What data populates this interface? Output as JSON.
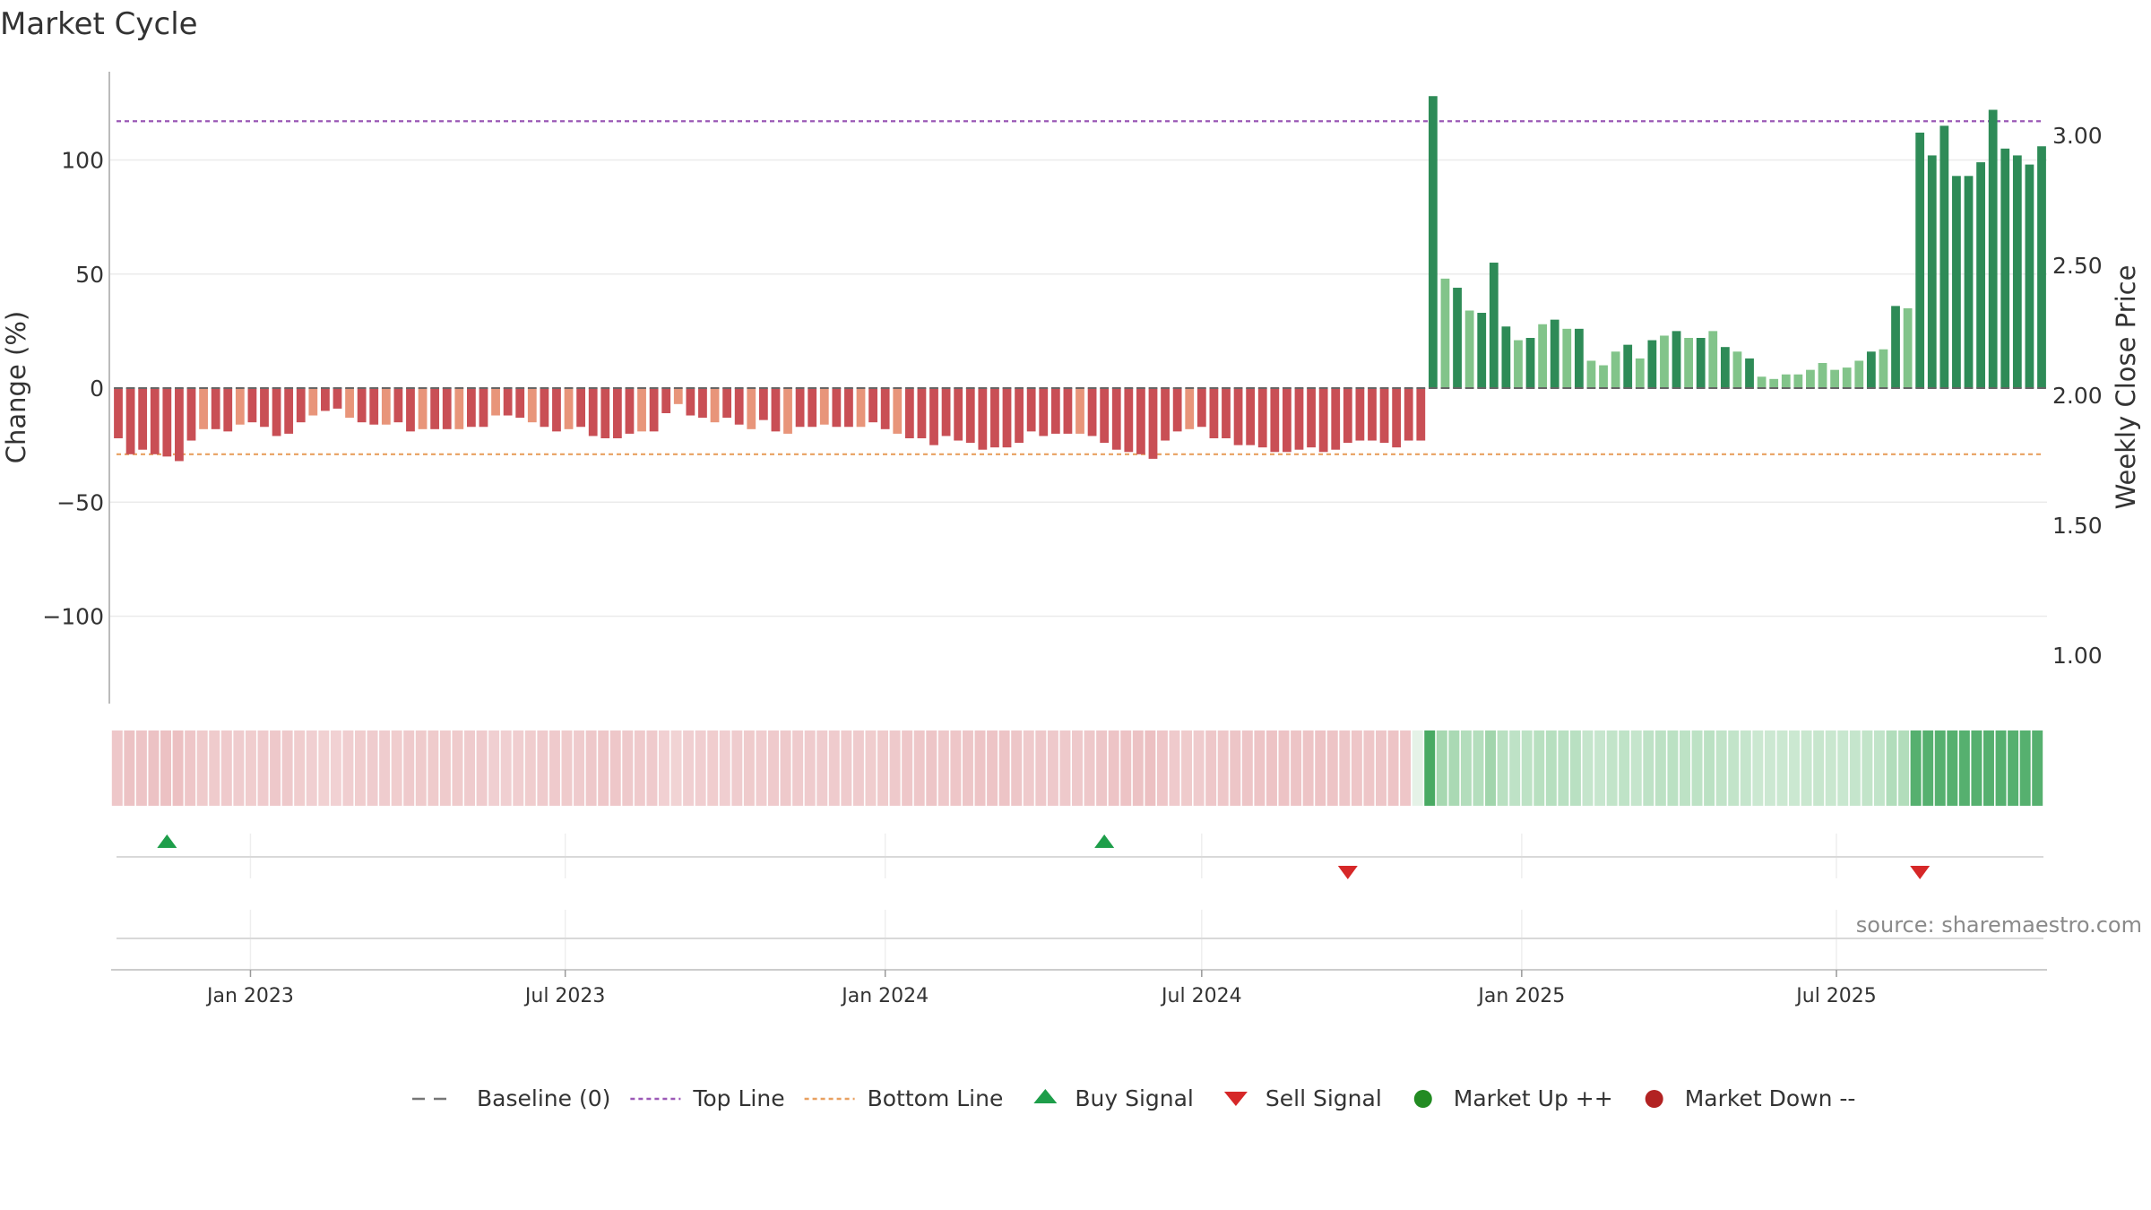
{
  "chart_data": {
    "type": "bar",
    "title": "Market Cycle",
    "ylabel": "Change (%)",
    "ylabel_right": "Weekly Close Price",
    "ylim": [
      -138,
      138
    ],
    "ylim_right": [
      0.9,
      3.5
    ],
    "yticks": [
      "100",
      "50",
      "0",
      "−50",
      "−100"
    ],
    "yticks_right": [
      "3.00",
      "2.50",
      "2.00",
      "1.50",
      "1.00"
    ],
    "xticks": [
      "Jan 2023",
      "Jul 2023",
      "Jan 2024",
      "Jul 2024",
      "Jan 2025",
      "Jul 2025"
    ],
    "top_line": 117,
    "bottom_line": -29,
    "baseline": 0,
    "start_date": "2022-10-17",
    "values": [
      -22,
      -29,
      -27,
      -29,
      -30,
      -32,
      -23,
      -18,
      -18,
      -19,
      -16,
      -15,
      -17,
      -21,
      -20,
      -15,
      -12,
      -10,
      -9,
      -13,
      -15,
      -16,
      -16,
      -15,
      -19,
      -18,
      -18,
      -18,
      -18,
      -17,
      -17,
      -12,
      -12,
      -13,
      -15,
      -17,
      -19,
      -18,
      -17,
      -21,
      -22,
      -22,
      -20,
      -19,
      -19,
      -11,
      -7,
      -12,
      -13,
      -15,
      -13,
      -16,
      -18,
      -14,
      -19,
      -20,
      -17,
      -17,
      -16,
      -17,
      -17,
      -17,
      -15,
      -18,
      -20,
      -22,
      -22,
      -25,
      -21,
      -23,
      -24,
      -27,
      -26,
      -26,
      -24,
      -19,
      -21,
      -20,
      -20,
      -20,
      -21,
      -24,
      -27,
      -28,
      -29,
      -31,
      -23,
      -19,
      -18,
      -17,
      -22,
      -22,
      -25,
      -25,
      -26,
      -28,
      -28,
      -27,
      -26,
      -28,
      -27,
      -24,
      -23,
      -23,
      -24,
      -26,
      -23,
      -23,
      128,
      48,
      44,
      34,
      33,
      55,
      27,
      21,
      22,
      28,
      30,
      26,
      26,
      12,
      10,
      16,
      19,
      13,
      21,
      23,
      25,
      22,
      22,
      25,
      18,
      16,
      13,
      5,
      4,
      6,
      6,
      8,
      11,
      8,
      9,
      12,
      16,
      17,
      36,
      35,
      112,
      102,
      115,
      93,
      93,
      99,
      122,
      105,
      102,
      98,
      106
    ],
    "series": [
      {
        "name": "Market Up ++",
        "color": "#2e8b57"
      },
      {
        "name": "Market Up +",
        "color": "#82c48a"
      },
      {
        "name": "Market Down --",
        "color": "#c94f55"
      },
      {
        "name": "Market Down -",
        "color": "#e8957a"
      }
    ],
    "buy_signals": [
      "2022-11-14",
      "2024-05-06"
    ],
    "sell_signals": [
      "2024-09-23",
      "2025-08-18"
    ],
    "source": "source: sharemaestro.com",
    "legend": {
      "placement": "bottom",
      "items": [
        {
          "label": "Baseline (0)",
          "marker": "dash",
          "color": "#777777"
        },
        {
          "label": "Top Line",
          "marker": "dotted",
          "color": "#9b59b6"
        },
        {
          "label": "Bottom Line",
          "marker": "dotted",
          "color": "#e8a060"
        },
        {
          "label": "Buy Signal",
          "marker": "triangle-up",
          "color": "#1e9e4a"
        },
        {
          "label": "Sell Signal",
          "marker": "triangle-down",
          "color": "#d62728"
        },
        {
          "label": "Market Up ++",
          "marker": "circle",
          "color": "#228b22"
        },
        {
          "label": "Market Down --",
          "marker": "circle",
          "color": "#b22222"
        }
      ]
    },
    "grid": true
  }
}
